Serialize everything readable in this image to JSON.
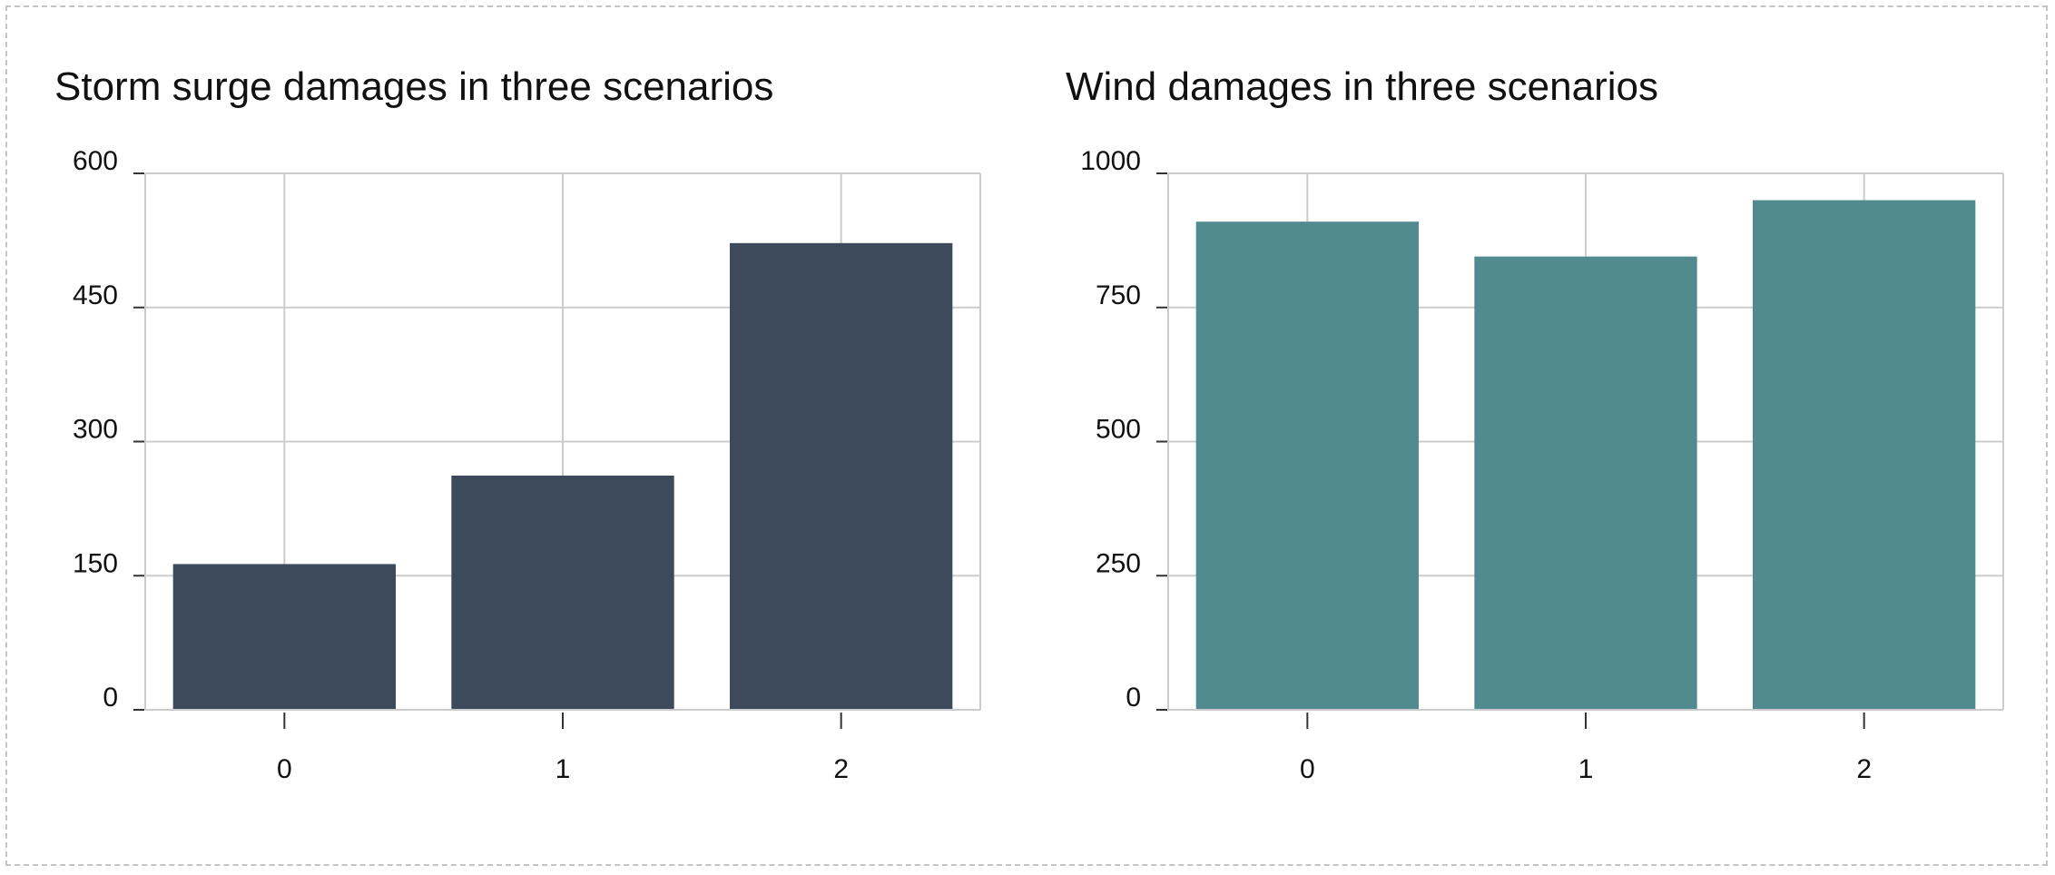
{
  "colors": {
    "storm_bar": "#3c4a5c",
    "wind_bar": "#528b8f",
    "grid": "#cccccc",
    "axis": "#333333"
  },
  "chart_data": [
    {
      "type": "bar",
      "title": "Storm surge damages in three scenarios",
      "xlabel": "",
      "ylabel": "",
      "categories": [
        "0",
        "1",
        "2"
      ],
      "values": [
        163,
        262,
        522
      ],
      "ylim": [
        0,
        600
      ],
      "yticks": [
        0,
        150,
        300,
        450,
        600
      ],
      "grid": true,
      "color": "#3c4a5c"
    },
    {
      "type": "bar",
      "title": "Wind damages in three scenarios",
      "xlabel": "",
      "ylabel": "",
      "categories": [
        "0",
        "1",
        "2"
      ],
      "values": [
        910,
        845,
        950
      ],
      "ylim": [
        0,
        1000
      ],
      "yticks": [
        0,
        250,
        500,
        750,
        1000
      ],
      "grid": true,
      "color": "#528b8f"
    }
  ]
}
